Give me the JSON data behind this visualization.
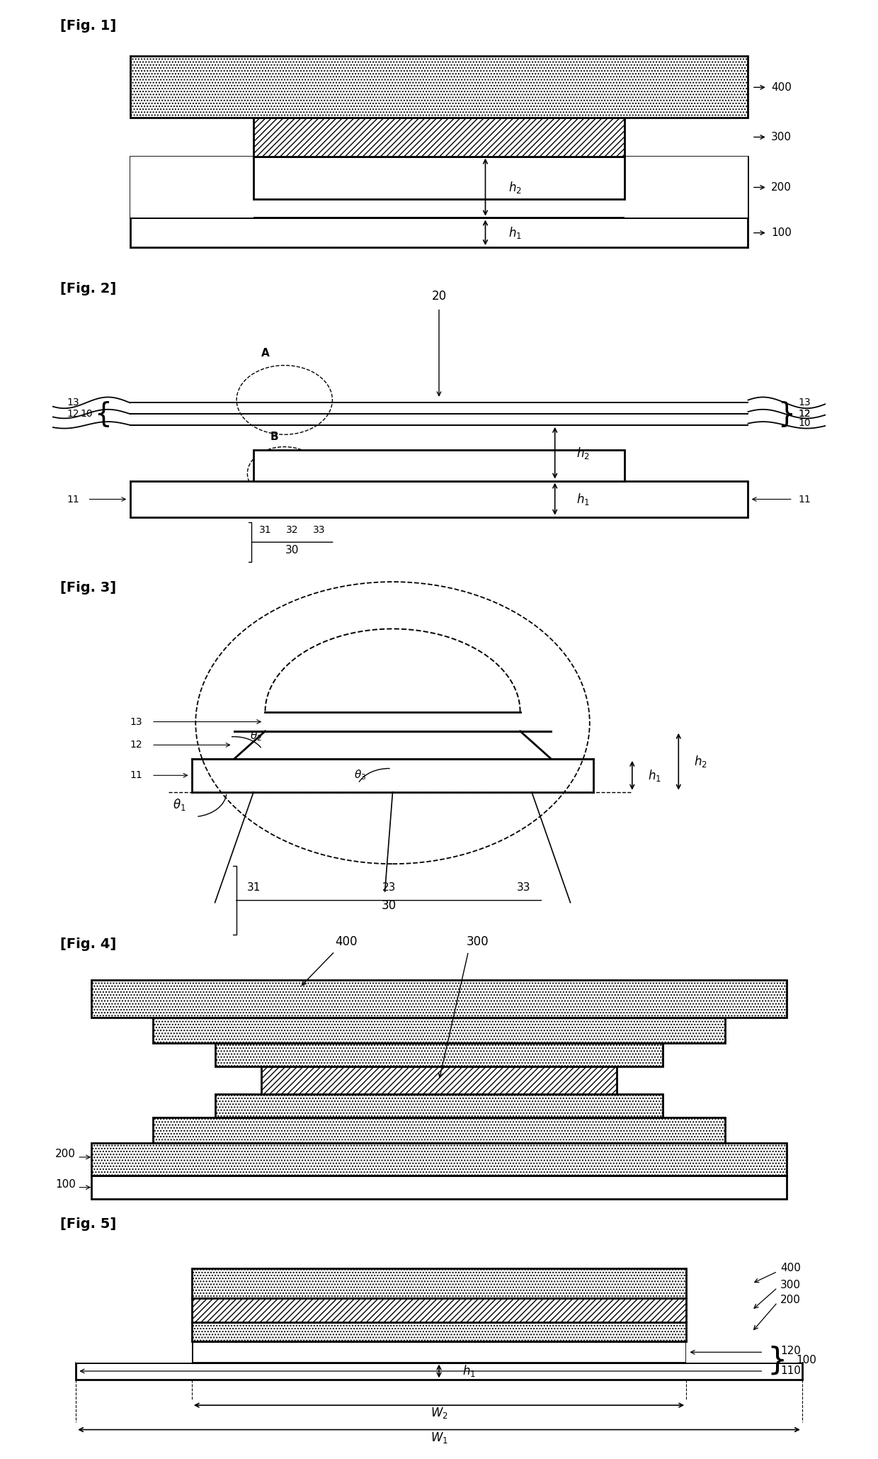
{
  "fig_labels": [
    "[Fig. 1]",
    "[Fig. 2]",
    "[Fig. 3]",
    "[Fig. 4]",
    "[Fig. 5]"
  ],
  "background_color": "#ffffff",
  "line_color": "#000000",
  "hatch_dots": "....",
  "hatch_diag": "////",
  "label_fontsize": 13,
  "fig_label_fontsize": 14,
  "annotation_fontsize": 12
}
